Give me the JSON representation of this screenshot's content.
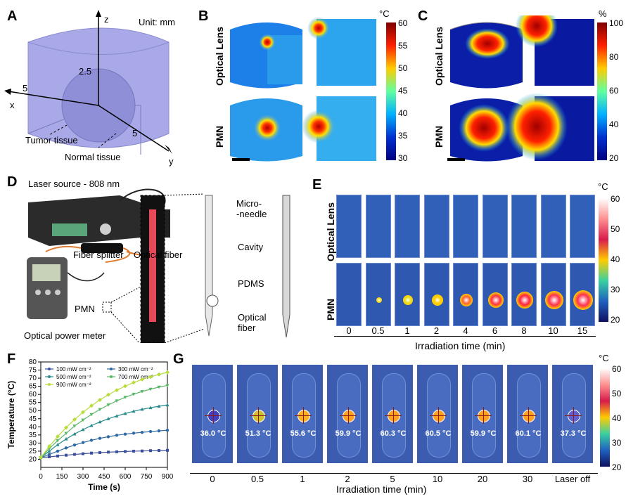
{
  "panelA": {
    "label": "A",
    "unit": "Unit: mm",
    "axis_z": "z",
    "axis_x": "x",
    "axis_y": "y",
    "radius": "2.5",
    "x_len": "5",
    "y_len": "5",
    "tumor": "Tumor tissue",
    "normal": "Normal tissue"
  },
  "panelB": {
    "label": "B",
    "row1": "Optical Lens",
    "row2": "PMN",
    "unit": "°C",
    "ticks": [
      "60",
      "55",
      "50",
      "45",
      "40",
      "35",
      "30"
    ]
  },
  "panelC": {
    "label": "C",
    "row1": "Optical Lens",
    "row2": "PMN",
    "unit": "%",
    "ticks": [
      "100",
      "80",
      "60",
      "40",
      "20"
    ]
  },
  "panelD": {
    "label": "D",
    "laser": "Laser source - 808 nm",
    "splitter": "Fiber splitter",
    "fiber": "Optical fiber",
    "pmn": "PMN",
    "meter": "Optical power meter",
    "microneedle": "Micro-\n-needle",
    "cavity": "Cavity",
    "pdms": "PDMS",
    "optfiber": "Optical\nfiber"
  },
  "panelE": {
    "label": "E",
    "row1": "Optical Lens",
    "row2": "PMN",
    "unit": "°C",
    "ticks": [
      "60",
      "50",
      "40",
      "30",
      "20"
    ],
    "times": [
      "0",
      "0.5",
      "1",
      "2",
      "4",
      "6",
      "8",
      "10",
      "15"
    ],
    "xlabel": "Irradiation time (min)"
  },
  "panelF": {
    "label": "F",
    "chart_data": {
      "type": "line",
      "xlabel": "Time (s)",
      "ylabel": "Temperature (°C)",
      "xlim": [
        0,
        900
      ],
      "ylim": [
        15,
        80
      ],
      "xticks": [
        "0",
        "150",
        "300",
        "450",
        "600",
        "750",
        "900"
      ],
      "yticks": [
        "20",
        "25",
        "30",
        "35",
        "40",
        "45",
        "50",
        "55",
        "60",
        "65",
        "70",
        "75",
        "80"
      ],
      "x": [
        0,
        60,
        120,
        180,
        240,
        300,
        360,
        420,
        480,
        540,
        600,
        660,
        720,
        780,
        840,
        900
      ],
      "series": [
        {
          "name": "100 mW cm⁻²",
          "color": "#3b4f9c",
          "values": [
            21,
            21.5,
            22,
            22.5,
            23,
            23.4,
            23.8,
            24.1,
            24.4,
            24.6,
            24.8,
            25,
            25.1,
            25.3,
            25.4,
            25.5
          ]
        },
        {
          "name": "300 mW cm⁻²",
          "color": "#2f6aa3",
          "values": [
            21,
            23,
            25,
            27,
            28.8,
            30.3,
            31.7,
            32.9,
            33.9,
            34.8,
            35.5,
            36.1,
            36.6,
            37.1,
            37.5,
            37.9
          ]
        },
        {
          "name": "500 mW cm⁻²",
          "color": "#2a8a8c",
          "values": [
            21,
            25,
            29,
            32.5,
            35.6,
            38.3,
            40.8,
            43,
            45,
            46.7,
            48.2,
            49.6,
            50.8,
            51.8,
            52.7,
            53.5
          ]
        },
        {
          "name": "700 mW cm⁻²",
          "color": "#5cb868",
          "values": [
            21,
            26.5,
            31.5,
            36,
            40.5,
            44.2,
            47.6,
            50.7,
            53.5,
            56,
            58.2,
            60.1,
            61.8,
            63.2,
            64.5,
            65.5
          ]
        },
        {
          "name": "900 mW cm⁻²",
          "color": "#b7dc3c",
          "values": [
            21,
            28,
            34,
            39.5,
            44.5,
            49,
            53,
            56.6,
            59.8,
            62.6,
            65.1,
            67.3,
            69.2,
            70.8,
            72.3,
            73.6
          ]
        }
      ]
    }
  },
  "panelG": {
    "label": "G",
    "unit": "°C",
    "ticks": [
      "60",
      "50",
      "40",
      "30",
      "20"
    ],
    "temps": [
      "36.0 °C",
      "51.3 °C",
      "55.6 °C",
      "59.9 °C",
      "60.3 °C",
      "60.5 °C",
      "59.9 °C",
      "60.1 °C",
      "37.3 °C"
    ],
    "times": [
      "0",
      "0.5",
      "1",
      "2",
      "5",
      "10",
      "20",
      "30",
      "Laser off"
    ],
    "xlabel": "Irradiation time (min)"
  }
}
